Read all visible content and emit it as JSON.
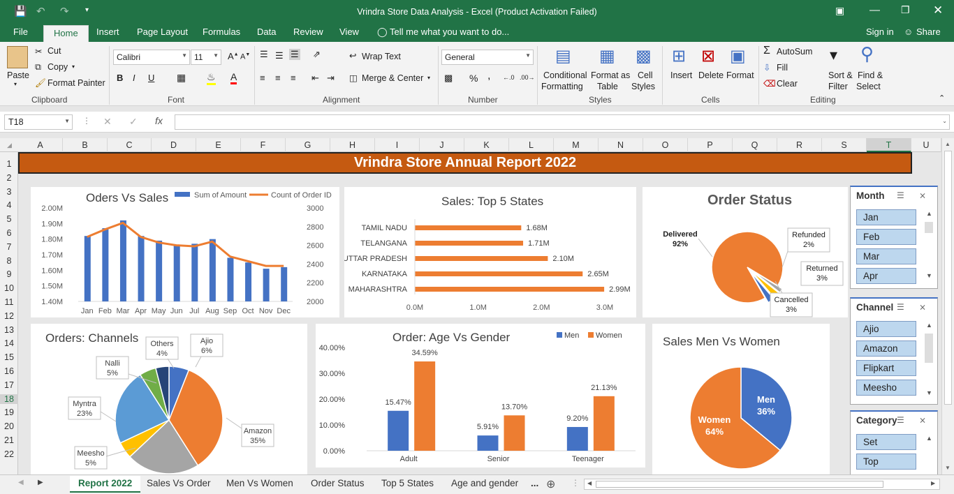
{
  "titlebar": {
    "title": "Vrindra Store Data Analysis - Excel (Product Activation Failed)"
  },
  "ribbon_tabs": [
    "File",
    "Home",
    "Insert",
    "Page Layout",
    "Formulas",
    "Data",
    "Review",
    "View"
  ],
  "tell_me": "Tell me what you want to do...",
  "account": {
    "signin": "Sign in",
    "share": "Share"
  },
  "clipboard": {
    "paste": "Paste",
    "cut": "Cut",
    "copy": "Copy",
    "format_painter": "Format Painter",
    "label": "Clipboard"
  },
  "font": {
    "name": "Calibri",
    "size": "11",
    "bold": "B",
    "italic": "I",
    "underline": "U",
    "label": "Font"
  },
  "alignment": {
    "wrap": "Wrap Text",
    "merge": "Merge & Center",
    "label": "Alignment"
  },
  "number": {
    "format": "General",
    "percent": "%",
    "comma": ",",
    "label": "Number"
  },
  "styles": {
    "cond1": "Conditional",
    "cond2": "Formatting",
    "fmt1": "Format as",
    "fmt2": "Table",
    "cell1": "Cell",
    "cell2": "Styles",
    "label": "Styles"
  },
  "cells": {
    "insert": "Insert",
    "delete": "Delete",
    "format": "Format",
    "label": "Cells"
  },
  "editing": {
    "autosum": "AutoSum",
    "fill": "Fill",
    "clear": "Clear",
    "sort1": "Sort &",
    "sort2": "Filter",
    "find1": "Find &",
    "find2": "Select",
    "label": "Editing"
  },
  "formula_bar": {
    "name_box": "T18",
    "fx": "fx",
    "value": ""
  },
  "columns": [
    "A",
    "B",
    "C",
    "D",
    "E",
    "F",
    "G",
    "H",
    "I",
    "J",
    "K",
    "L",
    "M",
    "N",
    "O",
    "P",
    "Q",
    "R",
    "S",
    "T",
    "U"
  ],
  "rows": [
    "1",
    "2",
    "3",
    "4",
    "5",
    "6",
    "7",
    "8",
    "9",
    "10",
    "11",
    "12",
    "13",
    "14",
    "15",
    "16",
    "17",
    "18",
    "19",
    "20",
    "21",
    "22"
  ],
  "banner": "Vrindra Store Annual Report 2022",
  "colors": {
    "excel_green": "#217346",
    "banner": "#c55a11",
    "blue": "#4472c4",
    "orange": "#ed7d31",
    "gray": "#a5a5a5",
    "yellow": "#ffc000",
    "light_blue": "#5b9bd5",
    "green": "#70ad47",
    "navy": "#264478"
  },
  "charts": [
    {
      "type": "bar",
      "title": "Oders Vs Sales",
      "legend": [
        "Sum of Amount",
        "Count of Order ID"
      ],
      "categories": [
        "Jan",
        "Feb",
        "Mar",
        "Apr",
        "May",
        "Jun",
        "Jul",
        "Aug",
        "Sep",
        "Oct",
        "Nov",
        "Dec"
      ],
      "y_ticks": [
        "2.00M",
        "1.90M",
        "1.80M",
        "1.70M",
        "1.60M",
        "1.50M",
        "1.40M"
      ],
      "y2_ticks": [
        "3000",
        "2800",
        "2600",
        "2400",
        "2200",
        "2000"
      ],
      "ylim": [
        1.4,
        2.0
      ],
      "y2lim": [
        2000,
        3000
      ],
      "series": [
        {
          "name": "Sum of Amount",
          "values": [
            1.82,
            1.87,
            1.92,
            1.82,
            1.79,
            1.76,
            1.77,
            1.8,
            1.68,
            1.65,
            1.61,
            1.62
          ]
        },
        {
          "name": "Count of Order ID",
          "values": [
            2690,
            2770,
            2840,
            2690,
            2630,
            2600,
            2590,
            2640,
            2480,
            2430,
            2380,
            2380
          ]
        }
      ]
    },
    {
      "type": "bar",
      "title": "Sales: Top 5 States",
      "categories": [
        "TAMIL NADU",
        "TELANGANA",
        "UTTAR PRADESH",
        "KARNATAKA",
        "MAHARASHTRA"
      ],
      "values": [
        1.68,
        1.71,
        2.1,
        2.65,
        2.99
      ],
      "labels": [
        "1.68M",
        "1.71M",
        "2.10M",
        "2.65M",
        "2.99M"
      ],
      "x_ticks": [
        "0.0M",
        "1.0M",
        "2.0M",
        "3.0M"
      ],
      "xlim": [
        0,
        3.0
      ]
    },
    {
      "type": "pie",
      "title": "Order Status",
      "slices": [
        {
          "name": "Delivered",
          "value": 92,
          "label": "92%"
        },
        {
          "name": "Refunded",
          "value": 2,
          "label": "2%"
        },
        {
          "name": "Returned",
          "value": 3,
          "label": "3%"
        },
        {
          "name": "Cancelled",
          "value": 3,
          "label": "3%"
        }
      ]
    },
    {
      "type": "pie",
      "title": "Orders: Channels",
      "slices": [
        {
          "name": "Ajio",
          "value": 6,
          "label": "6%"
        },
        {
          "name": "Amazon",
          "value": 35,
          "label": "35%"
        },
        {
          "name": "Flipkart",
          "value": 22,
          "label": ""
        },
        {
          "name": "Meesho",
          "value": 5,
          "label": "5%"
        },
        {
          "name": "Myntra",
          "value": 23,
          "label": "23%"
        },
        {
          "name": "Nalli",
          "value": 5,
          "label": "5%"
        },
        {
          "name": "Others",
          "value": 4,
          "label": "4%"
        }
      ]
    },
    {
      "type": "bar",
      "title": "Order: Age Vs Gender",
      "categories": [
        "Adult",
        "Senior",
        "Teenager"
      ],
      "y_ticks": [
        "40.00%",
        "30.00%",
        "20.00%",
        "10.00%",
        "0.00%"
      ],
      "ylim": [
        0,
        40
      ],
      "series": [
        {
          "name": "Men",
          "values": [
            15.47,
            5.91,
            9.2
          ],
          "labels": [
            "15.47%",
            "5.91%",
            "9.20%"
          ]
        },
        {
          "name": "Women",
          "values": [
            34.59,
            13.7,
            21.13
          ],
          "labels": [
            "34.59%",
            "13.70%",
            "21.13%"
          ]
        }
      ]
    },
    {
      "type": "pie",
      "title": "Sales Men Vs Women",
      "slices": [
        {
          "name": "Men",
          "value": 36,
          "label": "36%"
        },
        {
          "name": "Women",
          "value": 64,
          "label": "64%"
        }
      ]
    }
  ],
  "slicers": [
    {
      "title": "Month",
      "items": [
        "Jan",
        "Feb",
        "Mar",
        "Apr"
      ]
    },
    {
      "title": "Channel",
      "items": [
        "Ajio",
        "Amazon",
        "Flipkart",
        "Meesho"
      ]
    },
    {
      "title": "Category",
      "items": [
        "Set",
        "Top"
      ]
    }
  ],
  "sheets": [
    "Report 2022",
    "Sales Vs Order",
    "Men Vs Women",
    "Order Status",
    "Top 5 States",
    "Age and gender",
    "..."
  ]
}
